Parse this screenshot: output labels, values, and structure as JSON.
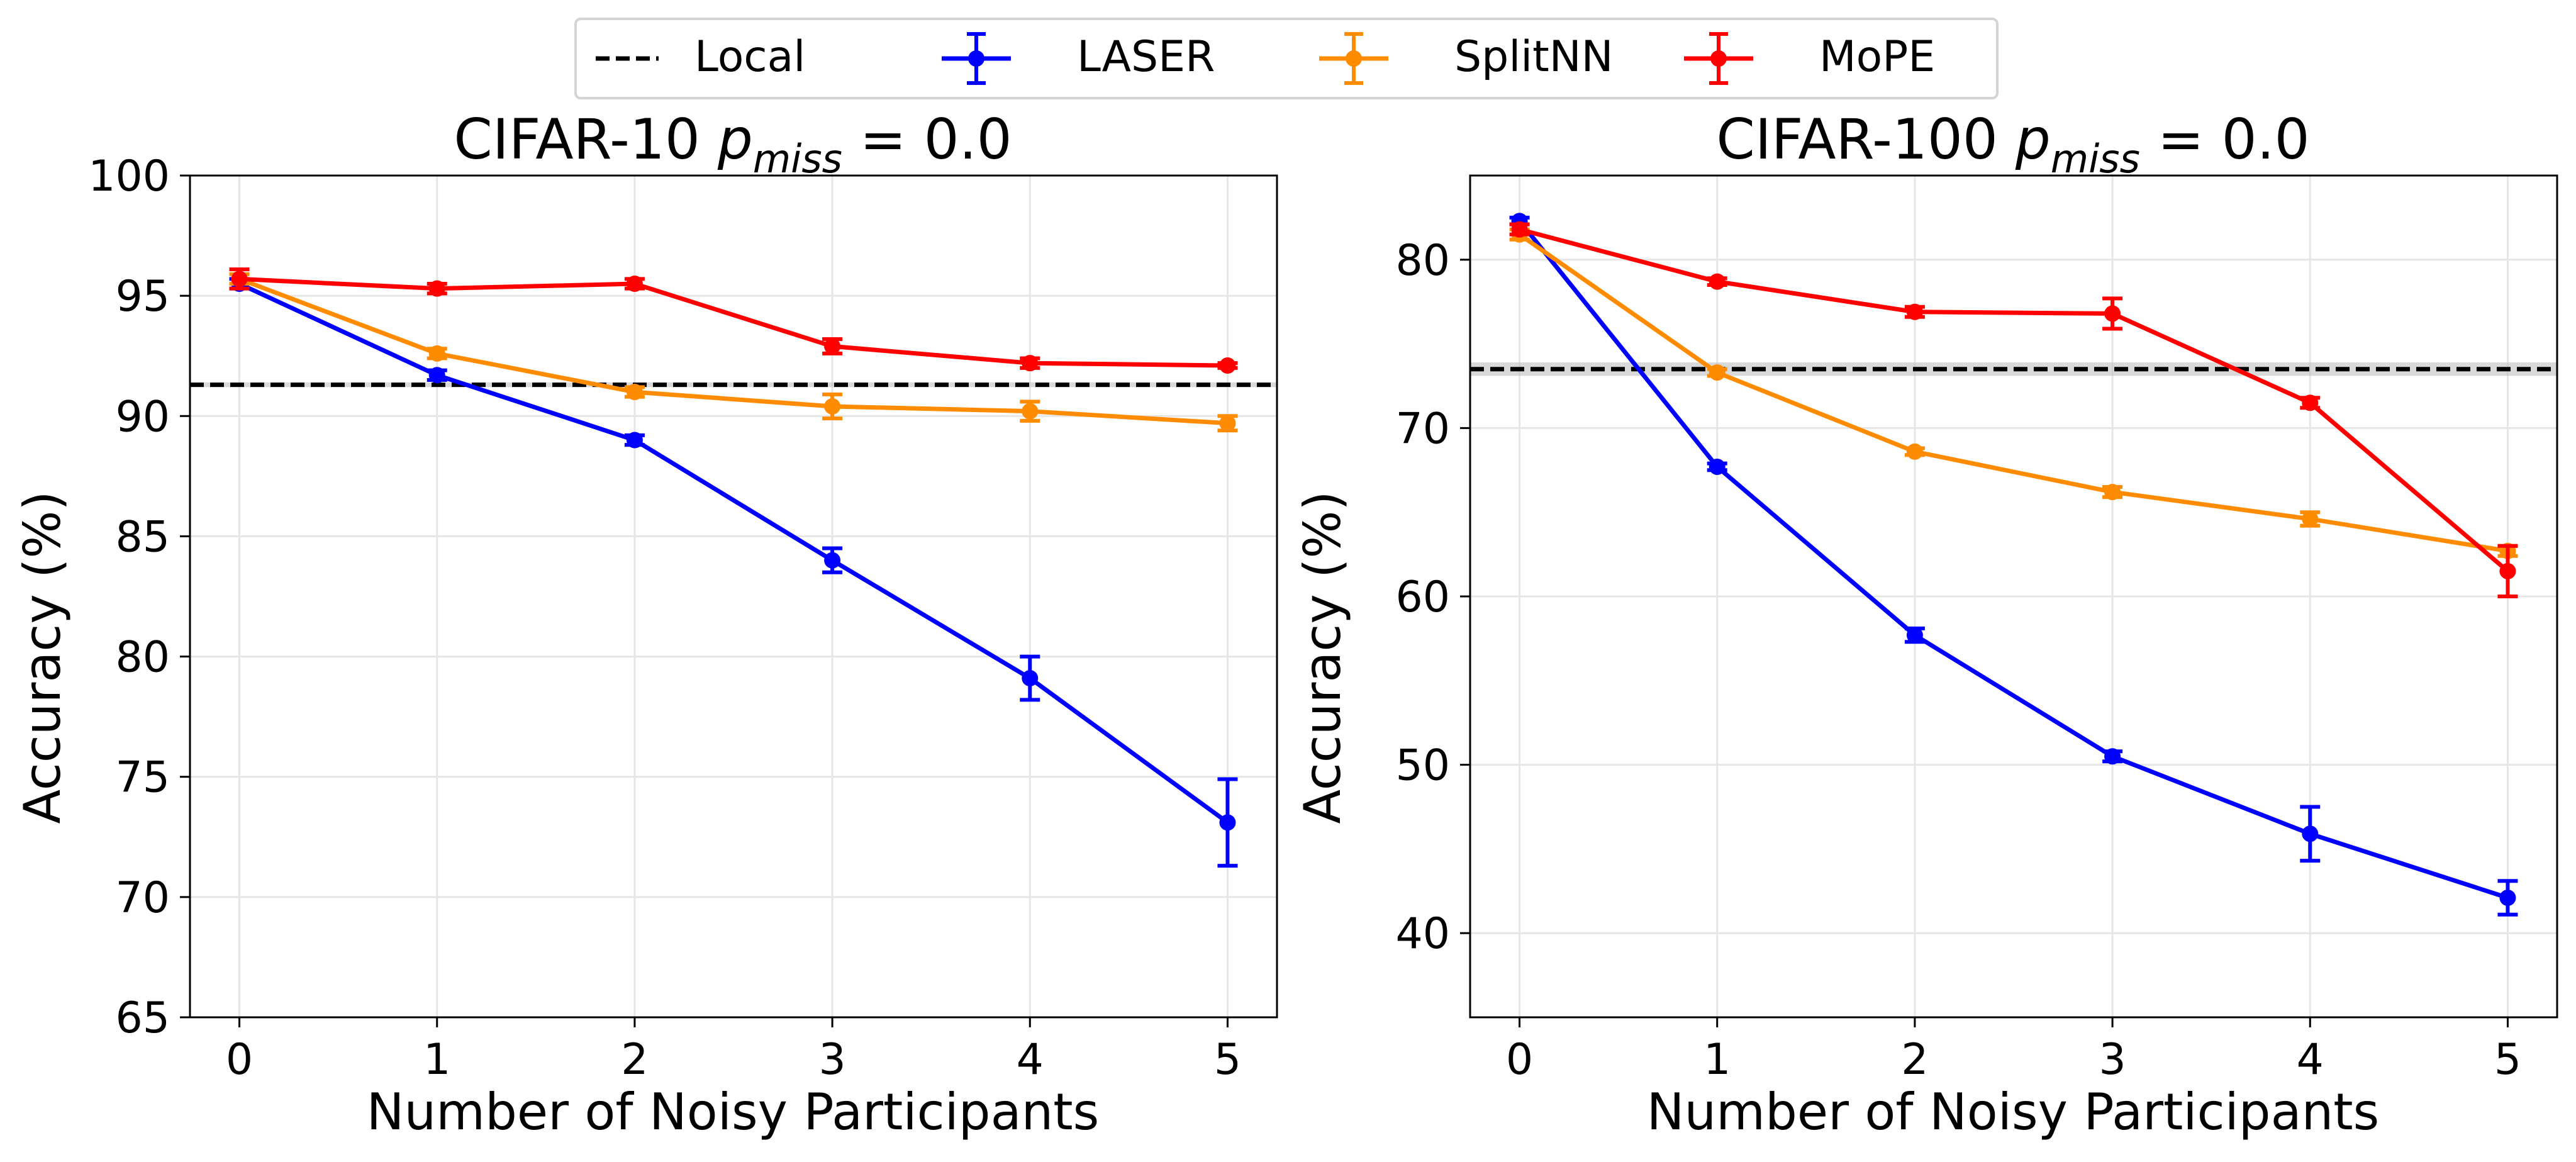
{
  "legend": {
    "entries": [
      {
        "name": "Local",
        "color": "#000000",
        "style": "dashed"
      },
      {
        "name": "LASER",
        "color": "#0000ff",
        "style": "errorbar"
      },
      {
        "name": "SplitNN",
        "color": "#ff8c00",
        "style": "errorbar"
      },
      {
        "name": "MoPE",
        "color": "#ff0000",
        "style": "errorbar"
      }
    ]
  },
  "chart_data": [
    {
      "type": "line",
      "title_prefix": "CIFAR-10 ",
      "title_symbol": "p",
      "title_subscript": "miss",
      "title_suffix": " = 0.0",
      "xlabel": "Number of Noisy Participants",
      "ylabel": "Accuracy (%)",
      "x": [
        0,
        1,
        2,
        3,
        4,
        5
      ],
      "xlim": [
        -0.25,
        5.25
      ],
      "ylim": [
        65,
        100
      ],
      "yticks": [
        65,
        70,
        75,
        80,
        85,
        90,
        95,
        100
      ],
      "grid": true,
      "baseline": {
        "name": "Local",
        "value": 91.3,
        "band": 0.1
      },
      "series": [
        {
          "name": "LASER",
          "color": "#0000ff",
          "values": [
            95.5,
            91.7,
            89.0,
            84.0,
            79.1,
            73.1
          ],
          "errors": [
            0.2,
            0.2,
            0.2,
            0.5,
            0.9,
            1.8
          ]
        },
        {
          "name": "SplitNN",
          "color": "#ff8c00",
          "values": [
            95.7,
            92.6,
            91.0,
            90.4,
            90.2,
            89.7
          ],
          "errors": [
            0.2,
            0.2,
            0.2,
            0.5,
            0.4,
            0.3
          ]
        },
        {
          "name": "MoPE",
          "color": "#ff0000",
          "values": [
            95.7,
            95.3,
            95.5,
            92.9,
            92.2,
            92.1
          ],
          "errors": [
            0.4,
            0.2,
            0.2,
            0.3,
            0.2,
            0.1
          ]
        }
      ]
    },
    {
      "type": "line",
      "title_prefix": "CIFAR-100 ",
      "title_symbol": "p",
      "title_subscript": "miss",
      "title_suffix": " = 0.0",
      "xlabel": "Number of Noisy Participants",
      "ylabel": "Accuracy (%)",
      "x": [
        0,
        1,
        2,
        3,
        4,
        5
      ],
      "xlim": [
        -0.25,
        5.25
      ],
      "ylim": [
        35,
        85
      ],
      "yticks": [
        40,
        50,
        60,
        70,
        80
      ],
      "grid": true,
      "baseline": {
        "name": "Local",
        "value": 73.5,
        "band": 0.4
      },
      "series": [
        {
          "name": "LASER",
          "color": "#0000ff",
          "values": [
            82.3,
            67.7,
            57.7,
            50.5,
            45.9,
            42.1
          ],
          "errors": [
            0.2,
            0.2,
            0.4,
            0.3,
            1.6,
            1.0
          ]
        },
        {
          "name": "SplitNN",
          "color": "#ff8c00",
          "values": [
            81.5,
            73.3,
            68.6,
            66.2,
            64.6,
            62.7
          ],
          "errors": [
            0.3,
            0.2,
            0.2,
            0.3,
            0.4,
            0.3
          ]
        },
        {
          "name": "MoPE",
          "color": "#ff0000",
          "values": [
            81.8,
            78.7,
            76.9,
            76.8,
            71.5,
            61.5
          ],
          "errors": [
            0.3,
            0.2,
            0.3,
            0.9,
            0.3,
            1.5
          ]
        }
      ]
    }
  ]
}
